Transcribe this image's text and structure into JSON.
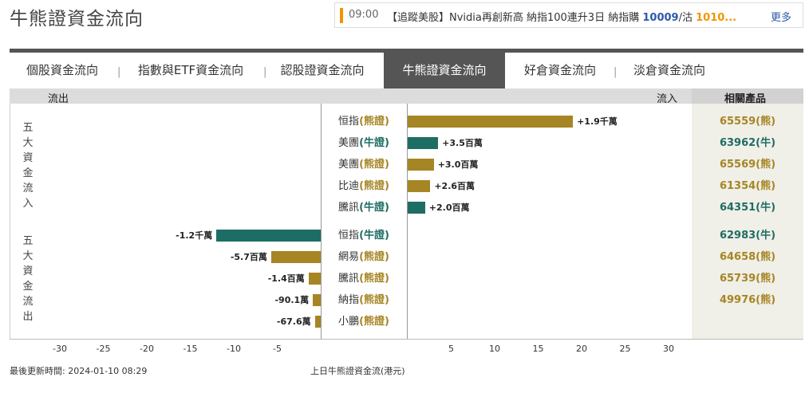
{
  "page": {
    "title": "牛熊證資金流向"
  },
  "ticker": {
    "time": "09:00",
    "headline_prefix": "【追蹤美股】Nvidia再創新高 納指100連升3日 納指購",
    "value_1": "10009",
    "separator": "/沽",
    "value_2": "1010...",
    "more_label": "更多"
  },
  "tabs": [
    {
      "label": "個股資金流向",
      "active": false
    },
    {
      "label": "指數與ETF資金流向",
      "active": false
    },
    {
      "label": "認股證資金流向",
      "active": false
    },
    {
      "label": "牛熊證資金流向",
      "active": true
    },
    {
      "label": "好倉資金流向",
      "active": false
    },
    {
      "label": "淡倉資金流向",
      "active": false
    }
  ],
  "header": {
    "outflow_label": "流出",
    "inflow_label": "流入",
    "products_label": "相關產品"
  },
  "side_labels": {
    "inflow_group": "五大資金流入",
    "outflow_group": "五大資金流出"
  },
  "colors": {
    "bear": "#a68524",
    "bull": "#1e6d64"
  },
  "chart_data": {
    "type": "bar",
    "orientation": "horizontal",
    "xlabel": "上日牛熊證資金流(港元)",
    "xlim": [
      -33,
      33
    ],
    "x_ticks": [
      -30,
      -25,
      -20,
      -15,
      -10,
      -5,
      5,
      10,
      15,
      20,
      25,
      30
    ],
    "unit_note": "1 tick unit = 1百萬港元",
    "rows": [
      {
        "group": "inflow",
        "name": "恒指",
        "kind": "熊證",
        "value": 19.0,
        "label": "+1.9千萬",
        "product": "65559(熊)"
      },
      {
        "group": "inflow",
        "name": "美團",
        "kind": "牛證",
        "value": 3.5,
        "label": "+3.5百萬",
        "product": "63962(牛)"
      },
      {
        "group": "inflow",
        "name": "美團",
        "kind": "熊證",
        "value": 3.0,
        "label": "+3.0百萬",
        "product": "65569(熊)"
      },
      {
        "group": "inflow",
        "name": "比迪",
        "kind": "熊證",
        "value": 2.6,
        "label": "+2.6百萬",
        "product": "61354(熊)"
      },
      {
        "group": "inflow",
        "name": "騰訊",
        "kind": "牛證",
        "value": 2.0,
        "label": "+2.0百萬",
        "product": "64351(牛)"
      },
      {
        "group": "outflow",
        "name": "恒指",
        "kind": "牛證",
        "value": -12.0,
        "label": "-1.2千萬",
        "product": "62983(牛)"
      },
      {
        "group": "outflow",
        "name": "網易",
        "kind": "熊證",
        "value": -5.7,
        "label": "-5.7百萬",
        "product": "64658(熊)"
      },
      {
        "group": "outflow",
        "name": "騰訊",
        "kind": "熊證",
        "value": -1.4,
        "label": "-1.4百萬",
        "product": "65739(熊)"
      },
      {
        "group": "outflow",
        "name": "納指",
        "kind": "熊證",
        "value": -0.901,
        "label": "-90.1萬",
        "product": "49976(熊)"
      },
      {
        "group": "outflow",
        "name": "小鵬",
        "kind": "熊證",
        "value": -0.676,
        "label": "-67.6萬",
        "product": ""
      }
    ]
  },
  "footer": {
    "updated": "最後更新時間: 2024-01-10 08:29",
    "axis_caption": "上日牛熊證資金流(港元)"
  }
}
